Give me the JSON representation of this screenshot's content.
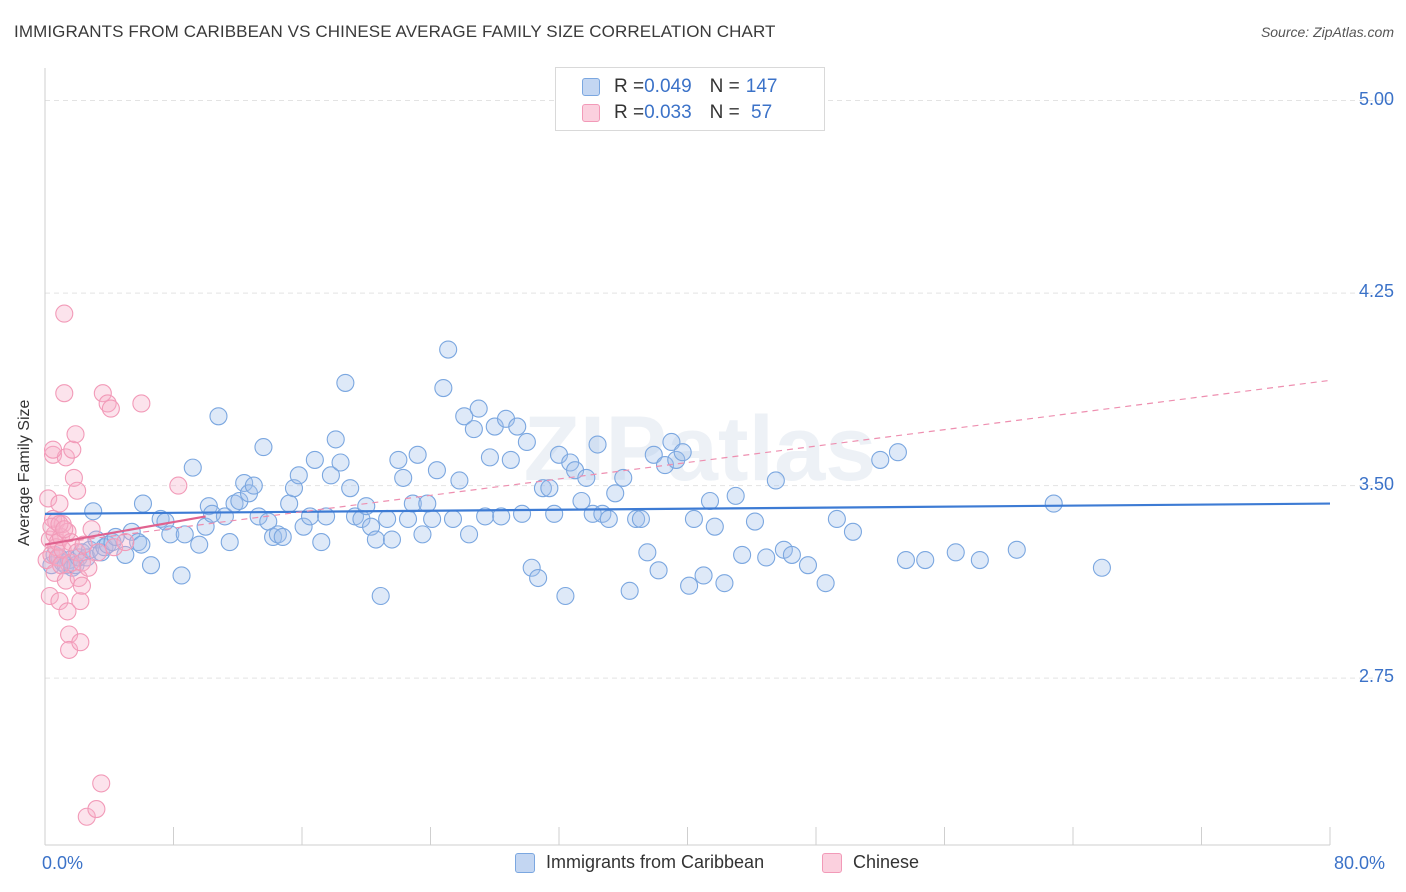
{
  "title": "IMMIGRANTS FROM CARIBBEAN VS CHINESE AVERAGE FAMILY SIZE CORRELATION CHART",
  "source": "Source: ZipAtlas.com",
  "watermark": "ZIPatlas",
  "legend": {
    "rows": [
      {
        "r_label": "R = ",
        "r_value": "0.049",
        "n_label": "N = ",
        "n_value": "147",
        "color": "#7ba7e0"
      },
      {
        "r_label": "R = ",
        "r_value": "0.033",
        "n_label": "N = ",
        "n_value": " 57",
        "color": "#f29ab8"
      }
    ]
  },
  "bottom_legend": [
    {
      "label": "Immigrants from Caribbean",
      "color": "#7ba7e0"
    },
    {
      "label": "Chinese",
      "color": "#f29ab8"
    }
  ],
  "chart_data": {
    "type": "scatter",
    "title": "IMMIGRANTS FROM CARIBBEAN VS CHINESE AVERAGE FAMILY SIZE CORRELATION CHART",
    "xlabel": "",
    "ylabel": "Average Family Size",
    "xlim": [
      0,
      80
    ],
    "ylim": [
      2.1,
      5.08
    ],
    "x_tick_labels": [
      "0.0%",
      "80.0%"
    ],
    "y_ticks": [
      2.75,
      3.5,
      4.25,
      5.0
    ],
    "y_tick_labels": [
      "2.75",
      "3.50",
      "4.25",
      "5.00"
    ],
    "grid": true,
    "legend_placement": "top-center",
    "series": [
      {
        "name": "Immigrants from Caribbean",
        "color": "#7ba7e0",
        "trend": {
          "x": [
            0,
            80
          ],
          "y": [
            3.39,
            3.43
          ]
        },
        "points": [
          [
            0.4,
            3.19
          ],
          [
            0.6,
            3.23
          ],
          [
            0.9,
            3.22
          ],
          [
            1.1,
            3.2
          ],
          [
            1.3,
            3.19
          ],
          [
            1.5,
            3.21
          ],
          [
            1.7,
            3.18
          ],
          [
            1.9,
            3.19
          ],
          [
            2.1,
            3.22
          ],
          [
            2.3,
            3.24
          ],
          [
            2.6,
            3.22
          ],
          [
            2.8,
            3.25
          ],
          [
            3.0,
            3.4
          ],
          [
            3.2,
            3.29
          ],
          [
            3.5,
            3.24
          ],
          [
            3.7,
            3.26
          ],
          [
            3.9,
            3.27
          ],
          [
            4.2,
            3.28
          ],
          [
            4.4,
            3.3
          ],
          [
            5.0,
            3.23
          ],
          [
            5.4,
            3.32
          ],
          [
            5.8,
            3.28
          ],
          [
            6.0,
            3.27
          ],
          [
            6.1,
            3.43
          ],
          [
            6.6,
            3.19
          ],
          [
            7.2,
            3.37
          ],
          [
            7.5,
            3.36
          ],
          [
            7.8,
            3.31
          ],
          [
            8.5,
            3.15
          ],
          [
            8.7,
            3.31
          ],
          [
            9.2,
            3.57
          ],
          [
            9.6,
            3.27
          ],
          [
            10.0,
            3.34
          ],
          [
            10.2,
            3.42
          ],
          [
            10.4,
            3.39
          ],
          [
            10.8,
            3.77
          ],
          [
            11.2,
            3.38
          ],
          [
            11.5,
            3.28
          ],
          [
            11.8,
            3.43
          ],
          [
            12.1,
            3.44
          ],
          [
            12.4,
            3.51
          ],
          [
            12.7,
            3.47
          ],
          [
            13.0,
            3.5
          ],
          [
            13.3,
            3.38
          ],
          [
            13.6,
            3.65
          ],
          [
            13.9,
            3.36
          ],
          [
            14.2,
            3.3
          ],
          [
            14.5,
            3.31
          ],
          [
            14.8,
            3.3
          ],
          [
            15.2,
            3.43
          ],
          [
            15.5,
            3.49
          ],
          [
            15.8,
            3.54
          ],
          [
            16.1,
            3.34
          ],
          [
            16.5,
            3.38
          ],
          [
            16.8,
            3.6
          ],
          [
            17.2,
            3.28
          ],
          [
            17.5,
            3.38
          ],
          [
            17.8,
            3.54
          ],
          [
            18.1,
            3.68
          ],
          [
            18.4,
            3.59
          ],
          [
            18.7,
            3.9
          ],
          [
            19.0,
            3.49
          ],
          [
            19.3,
            3.38
          ],
          [
            19.7,
            3.37
          ],
          [
            20.0,
            3.42
          ],
          [
            20.3,
            3.34
          ],
          [
            20.6,
            3.29
          ],
          [
            20.9,
            3.07
          ],
          [
            21.3,
            3.37
          ],
          [
            21.6,
            3.29
          ],
          [
            22.0,
            3.6
          ],
          [
            22.3,
            3.53
          ],
          [
            22.6,
            3.37
          ],
          [
            22.9,
            3.43
          ],
          [
            23.2,
            3.62
          ],
          [
            23.5,
            3.31
          ],
          [
            23.8,
            3.43
          ],
          [
            24.1,
            3.37
          ],
          [
            24.4,
            3.56
          ],
          [
            24.8,
            3.88
          ],
          [
            25.1,
            4.03
          ],
          [
            25.4,
            3.37
          ],
          [
            25.8,
            3.52
          ],
          [
            26.1,
            3.77
          ],
          [
            26.4,
            3.31
          ],
          [
            26.7,
            3.72
          ],
          [
            27.0,
            3.8
          ],
          [
            27.4,
            3.38
          ],
          [
            27.7,
            3.61
          ],
          [
            28.0,
            3.73
          ],
          [
            28.4,
            3.38
          ],
          [
            28.7,
            3.76
          ],
          [
            29.0,
            3.6
          ],
          [
            29.4,
            3.73
          ],
          [
            29.7,
            3.39
          ],
          [
            30.0,
            3.67
          ],
          [
            30.3,
            3.18
          ],
          [
            30.7,
            3.14
          ],
          [
            31.0,
            3.49
          ],
          [
            31.4,
            3.49
          ],
          [
            31.7,
            3.39
          ],
          [
            32.0,
            3.62
          ],
          [
            32.4,
            3.07
          ],
          [
            32.7,
            3.59
          ],
          [
            33.0,
            3.56
          ],
          [
            33.4,
            3.44
          ],
          [
            33.7,
            3.53
          ],
          [
            34.1,
            3.39
          ],
          [
            34.4,
            3.66
          ],
          [
            34.7,
            3.39
          ],
          [
            35.1,
            3.37
          ],
          [
            35.5,
            3.47
          ],
          [
            36.0,
            3.53
          ],
          [
            36.4,
            3.09
          ],
          [
            36.8,
            3.37
          ],
          [
            37.1,
            3.37
          ],
          [
            37.5,
            3.24
          ],
          [
            37.9,
            3.62
          ],
          [
            38.2,
            3.17
          ],
          [
            38.6,
            3.58
          ],
          [
            39.0,
            3.67
          ],
          [
            39.3,
            3.6
          ],
          [
            39.7,
            3.63
          ],
          [
            40.1,
            3.11
          ],
          [
            40.4,
            3.37
          ],
          [
            41.0,
            3.15
          ],
          [
            41.4,
            3.44
          ],
          [
            41.7,
            3.34
          ],
          [
            42.3,
            3.12
          ],
          [
            43.0,
            3.46
          ],
          [
            43.4,
            3.23
          ],
          [
            44.2,
            3.36
          ],
          [
            44.9,
            3.22
          ],
          [
            45.5,
            3.52
          ],
          [
            46.0,
            3.25
          ],
          [
            46.5,
            3.23
          ],
          [
            47.5,
            3.19
          ],
          [
            48.6,
            3.12
          ],
          [
            49.3,
            3.37
          ],
          [
            50.3,
            3.32
          ],
          [
            52.0,
            3.6
          ],
          [
            53.1,
            3.63
          ],
          [
            53.6,
            3.21
          ],
          [
            54.8,
            3.21
          ],
          [
            56.7,
            3.24
          ],
          [
            58.2,
            3.21
          ],
          [
            60.5,
            3.25
          ],
          [
            62.8,
            3.43
          ],
          [
            65.8,
            3.18
          ]
        ]
      },
      {
        "name": "Chinese",
        "color": "#f29ab8",
        "trend_solid": {
          "x": [
            0,
            10
          ],
          "y": [
            3.27,
            3.38
          ]
        },
        "trend_dashed": {
          "x": [
            0,
            80
          ],
          "y": [
            3.27,
            3.91
          ]
        },
        "points": [
          [
            0.1,
            3.21
          ],
          [
            0.2,
            3.45
          ],
          [
            0.3,
            3.29
          ],
          [
            0.3,
            3.07
          ],
          [
            0.4,
            3.23
          ],
          [
            0.5,
            3.37
          ],
          [
            0.5,
            3.62
          ],
          [
            0.6,
            3.31
          ],
          [
            0.6,
            3.16
          ],
          [
            0.7,
            3.26
          ],
          [
            0.7,
            3.36
          ],
          [
            0.8,
            3.28
          ],
          [
            0.8,
            3.22
          ],
          [
            0.9,
            3.43
          ],
          [
            0.9,
            3.05
          ],
          [
            1.0,
            3.3
          ],
          [
            1.0,
            3.19
          ],
          [
            1.1,
            3.35
          ],
          [
            1.1,
            3.25
          ],
          [
            1.2,
            4.17
          ],
          [
            1.2,
            3.86
          ],
          [
            1.3,
            3.61
          ],
          [
            1.3,
            3.13
          ],
          [
            1.4,
            3.32
          ],
          [
            1.4,
            3.01
          ],
          [
            1.5,
            2.92
          ],
          [
            1.5,
            2.86
          ],
          [
            1.6,
            3.28
          ],
          [
            1.6,
            3.2
          ],
          [
            1.7,
            3.64
          ],
          [
            1.8,
            3.53
          ],
          [
            1.9,
            3.7
          ],
          [
            2.0,
            3.48
          ],
          [
            2.0,
            3.24
          ],
          [
            2.1,
            3.14
          ],
          [
            2.2,
            3.05
          ],
          [
            2.2,
            2.89
          ],
          [
            2.3,
            3.2
          ],
          [
            2.3,
            3.11
          ],
          [
            2.4,
            3.27
          ],
          [
            2.6,
            2.21
          ],
          [
            2.7,
            3.18
          ],
          [
            2.9,
            3.33
          ],
          [
            3.2,
            2.24
          ],
          [
            3.3,
            3.24
          ],
          [
            3.5,
            2.34
          ],
          [
            3.6,
            3.86
          ],
          [
            3.9,
            3.82
          ],
          [
            4.1,
            3.8
          ],
          [
            4.3,
            3.26
          ],
          [
            5.0,
            3.28
          ],
          [
            6.0,
            3.82
          ],
          [
            8.3,
            3.5
          ],
          [
            0.4,
            3.34
          ],
          [
            0.5,
            3.64
          ],
          [
            0.9,
            3.35
          ],
          [
            1.2,
            3.33
          ]
        ]
      }
    ]
  }
}
